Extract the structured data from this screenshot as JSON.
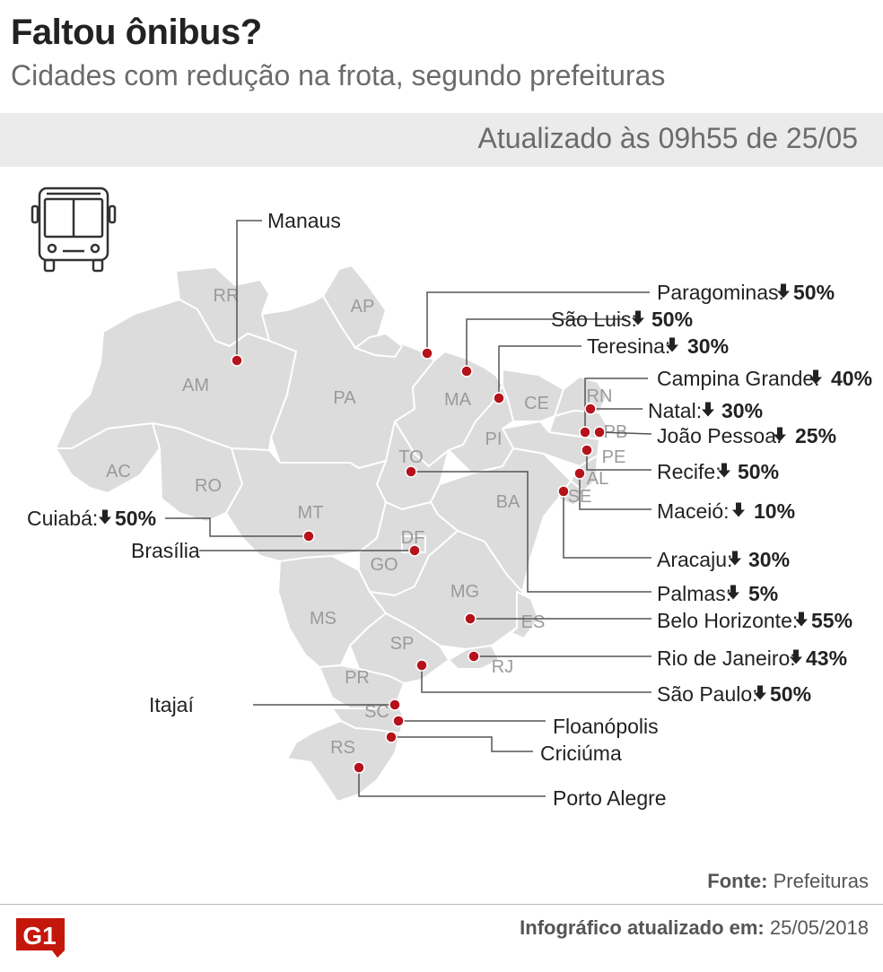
{
  "header": {
    "title": "Faltou ônibus?",
    "subtitle": "Cidades com redução na frota, segundo prefeituras",
    "updated": "Atualizado às 09h55 de 25/05"
  },
  "arrow_icon": "down-arrow",
  "bus_icon": "bus-front",
  "colors": {
    "marker": "#b5121b",
    "state_fill": "#dcdcdc",
    "state_stroke": "#ffffff",
    "leader": "#555555",
    "brand": "#c4170c"
  },
  "states": [
    "RR",
    "AP",
    "AM",
    "PA",
    "MA",
    "CE",
    "RN",
    "PB",
    "PE",
    "AL",
    "SE",
    "PI",
    "TO",
    "BA",
    "AC",
    "RO",
    "MT",
    "DF",
    "GO",
    "MG",
    "ES",
    "MS",
    "SP",
    "RJ",
    "PR",
    "SC",
    "RS"
  ],
  "cities": [
    {
      "name": "Manaus",
      "reduction": ""
    },
    {
      "name": "Paragominas:",
      "reduction": "50%"
    },
    {
      "name": "São Luis:",
      "reduction": "50%"
    },
    {
      "name": "Teresina:",
      "reduction": "30%"
    },
    {
      "name": "Campina Grande:",
      "reduction": "40%"
    },
    {
      "name": "Natal:",
      "reduction": "30%"
    },
    {
      "name": "João Pessoa:",
      "reduction": "25%"
    },
    {
      "name": "Recife:",
      "reduction": "50%"
    },
    {
      "name": "Maceió:",
      "reduction": "10%"
    },
    {
      "name": "Aracaju:",
      "reduction": "30%"
    },
    {
      "name": "Palmas:",
      "reduction": "5%"
    },
    {
      "name": "Belo Horizonte:",
      "reduction": "55%"
    },
    {
      "name": "Rio de Janeiro:",
      "reduction": "43%"
    },
    {
      "name": "São Paulo:",
      "reduction": "50%"
    },
    {
      "name": "Cuiabá:",
      "reduction": "50%"
    },
    {
      "name": "Brasília",
      "reduction": ""
    },
    {
      "name": "Itajaí",
      "reduction": ""
    },
    {
      "name": "Floanópolis",
      "reduction": ""
    },
    {
      "name": "Criciúma",
      "reduction": ""
    },
    {
      "name": "Porto Alegre",
      "reduction": ""
    }
  ],
  "footer": {
    "source_label": "Fonte:",
    "source_value": "Prefeituras",
    "logo": "G1",
    "updated_label": "Infográfico atualizado em:",
    "updated_value": "25/05/2018"
  }
}
